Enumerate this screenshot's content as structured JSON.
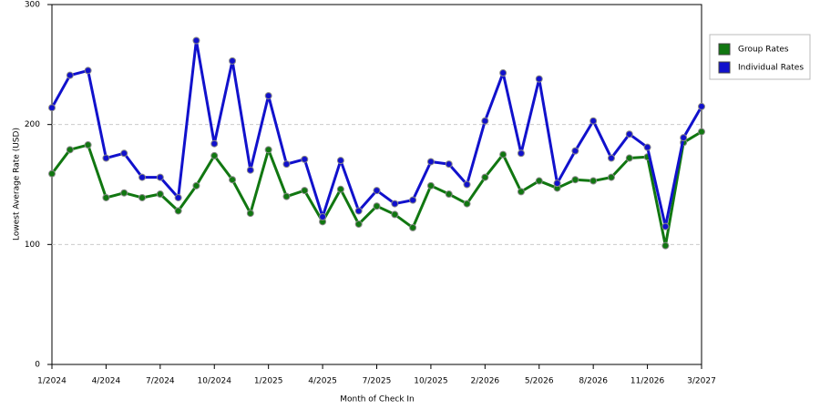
{
  "chart_data": {
    "type": "line",
    "x_label": "Month of Check In",
    "y_label": "Lowest Average Rate (USD)",
    "categories": [
      "1/2024",
      null,
      null,
      "4/2024",
      null,
      null,
      "7/2024",
      null,
      null,
      "10/2024",
      null,
      null,
      "1/2025",
      null,
      null,
      "4/2025",
      null,
      null,
      "7/2025",
      null,
      null,
      "10/2025",
      null,
      null,
      "2/2026",
      null,
      null,
      "5/2026",
      null,
      null,
      "8/2026",
      null,
      null,
      "11/2026",
      null,
      null,
      "3/2027"
    ],
    "series": [
      {
        "name": "Group Rates",
        "color": "#117711",
        "values": [
          159,
          179,
          183,
          139,
          143,
          139,
          142,
          128,
          149,
          174,
          154,
          126,
          179,
          140,
          145,
          119,
          146,
          117,
          132,
          125,
          114,
          149,
          142,
          134,
          156,
          175,
          144,
          153,
          147,
          154,
          153,
          156,
          172,
          173,
          99,
          185,
          194
        ]
      },
      {
        "name": "Individual Rates",
        "color": "#1111cc",
        "values": [
          214,
          241,
          245,
          172,
          176,
          156,
          156,
          139,
          270,
          184,
          253,
          162,
          224,
          167,
          171,
          123,
          170,
          128,
          145,
          134,
          137,
          169,
          167,
          150,
          203,
          243,
          176,
          238,
          151,
          178,
          203,
          172,
          192,
          181,
          115,
          189,
          215
        ]
      }
    ],
    "ylim": [
      0,
      300
    ],
    "yticks": [
      0,
      100,
      200,
      300
    ],
    "grid": true,
    "legend": "right"
  }
}
